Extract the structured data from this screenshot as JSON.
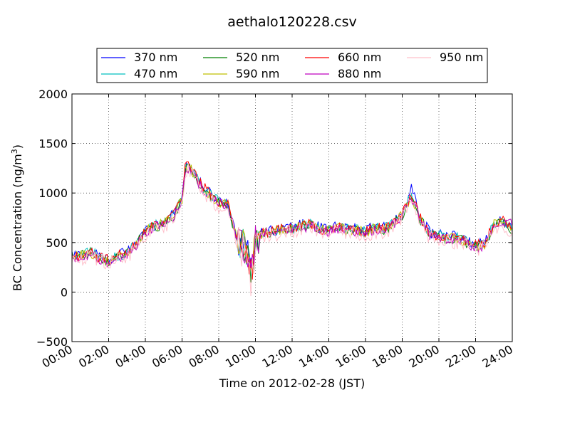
{
  "chart_data": {
    "type": "line",
    "title": "aethalo120228.csv",
    "xlabel": "Time on 2012-02-28 (JST)",
    "ylabel": "BC Concentration (ng/m³)",
    "ylabel_main": "BC Concentration (ng/m",
    "ylabel_sup": "3",
    "ylabel_end": ")",
    "xlim": [
      "00:00",
      "24:00"
    ],
    "ylim": [
      -500,
      2000
    ],
    "grid": true,
    "legend_position": "top",
    "x_tick_labels": [
      "00:00",
      "02:00",
      "04:00",
      "06:00",
      "08:00",
      "10:00",
      "12:00",
      "14:00",
      "16:00",
      "18:00",
      "20:00",
      "22:00",
      "24:00"
    ],
    "y_tick_labels": [
      "−500",
      "0",
      "500",
      "1000",
      "1500",
      "2000"
    ],
    "x_anchors_hours": [
      0,
      0.5,
      1,
      1.5,
      2,
      2.5,
      3,
      3.5,
      4,
      4.5,
      5,
      5.5,
      6,
      6.2,
      6.5,
      7,
      7.5,
      8,
      8.5,
      9,
      9.5,
      9.8,
      10,
      10.5,
      11,
      11.5,
      12,
      12.5,
      13,
      13.5,
      14,
      14.5,
      15,
      15.5,
      16,
      16.5,
      17,
      17.5,
      18,
      18.5,
      19,
      19.5,
      20,
      20.5,
      21,
      21.5,
      22,
      22.5,
      23,
      23.5,
      24
    ],
    "series": [
      {
        "name": "370 nm",
        "color": "#0000ff",
        "values": [
          370,
          380,
          420,
          360,
          330,
          380,
          400,
          500,
          620,
          680,
          700,
          780,
          950,
          1300,
          1250,
          1100,
          1000,
          920,
          900,
          550,
          450,
          200,
          550,
          620,
          620,
          660,
          650,
          680,
          700,
          650,
          640,
          670,
          650,
          640,
          620,
          660,
          650,
          700,
          800,
          1050,
          750,
          600,
          580,
          560,
          560,
          520,
          480,
          500,
          700,
          720,
          650
        ]
      },
      {
        "name": "470 nm",
        "color": "#00bfbf",
        "values": [
          360,
          370,
          410,
          350,
          320,
          370,
          390,
          490,
          610,
          670,
          690,
          770,
          940,
          1290,
          1240,
          1090,
          990,
          910,
          890,
          540,
          440,
          190,
          540,
          610,
          610,
          650,
          640,
          670,
          690,
          640,
          630,
          660,
          640,
          630,
          610,
          650,
          640,
          690,
          790,
          1000,
          740,
          590,
          570,
          550,
          550,
          510,
          470,
          490,
          690,
          710,
          640
        ]
      },
      {
        "name": "520 nm",
        "color": "#008000",
        "values": [
          350,
          360,
          400,
          340,
          310,
          360,
          380,
          480,
          600,
          660,
          680,
          760,
          930,
          1280,
          1230,
          1080,
          980,
          900,
          880,
          530,
          430,
          180,
          530,
          600,
          600,
          640,
          630,
          660,
          680,
          630,
          620,
          650,
          630,
          620,
          600,
          640,
          630,
          680,
          780,
          950,
          730,
          580,
          560,
          540,
          540,
          500,
          460,
          480,
          680,
          700,
          630
        ]
      },
      {
        "name": "590 nm",
        "color": "#bfbf00",
        "values": [
          355,
          365,
          405,
          345,
          315,
          365,
          385,
          485,
          605,
          665,
          685,
          765,
          935,
          1285,
          1235,
          1085,
          985,
          905,
          885,
          535,
          435,
          185,
          535,
          605,
          605,
          645,
          635,
          665,
          685,
          635,
          625,
          655,
          635,
          625,
          605,
          645,
          635,
          685,
          785,
          960,
          735,
          585,
          565,
          545,
          545,
          505,
          465,
          485,
          685,
          705,
          635
        ]
      },
      {
        "name": "660 nm",
        "color": "#ff0000",
        "values": [
          360,
          370,
          405,
          345,
          320,
          365,
          390,
          485,
          610,
          670,
          690,
          770,
          945,
          1320,
          1260,
          1100,
          1000,
          915,
          895,
          540,
          440,
          180,
          540,
          610,
          610,
          650,
          640,
          670,
          690,
          640,
          630,
          660,
          640,
          630,
          610,
          650,
          640,
          690,
          790,
          980,
          740,
          590,
          570,
          550,
          550,
          510,
          470,
          490,
          700,
          720,
          640
        ]
      },
      {
        "name": "880 nm",
        "color": "#bf00bf",
        "values": [
          345,
          355,
          395,
          335,
          305,
          355,
          375,
          475,
          595,
          655,
          675,
          755,
          925,
          1270,
          1220,
          1070,
          970,
          890,
          870,
          520,
          420,
          170,
          520,
          590,
          590,
          630,
          620,
          650,
          670,
          620,
          610,
          640,
          620,
          610,
          590,
          630,
          620,
          670,
          770,
          940,
          720,
          570,
          550,
          530,
          530,
          490,
          450,
          470,
          670,
          690,
          700
        ]
      },
      {
        "name": "950 nm",
        "color": "#ffc0cb",
        "values": [
          330,
          340,
          380,
          320,
          290,
          340,
          360,
          460,
          580,
          640,
          660,
          740,
          910,
          1250,
          1200,
          1050,
          950,
          870,
          850,
          500,
          400,
          150,
          500,
          570,
          570,
          610,
          600,
          630,
          650,
          600,
          590,
          620,
          600,
          590,
          570,
          610,
          600,
          650,
          750,
          920,
          700,
          550,
          530,
          510,
          510,
          470,
          430,
          450,
          650,
          670,
          620
        ]
      }
    ]
  }
}
